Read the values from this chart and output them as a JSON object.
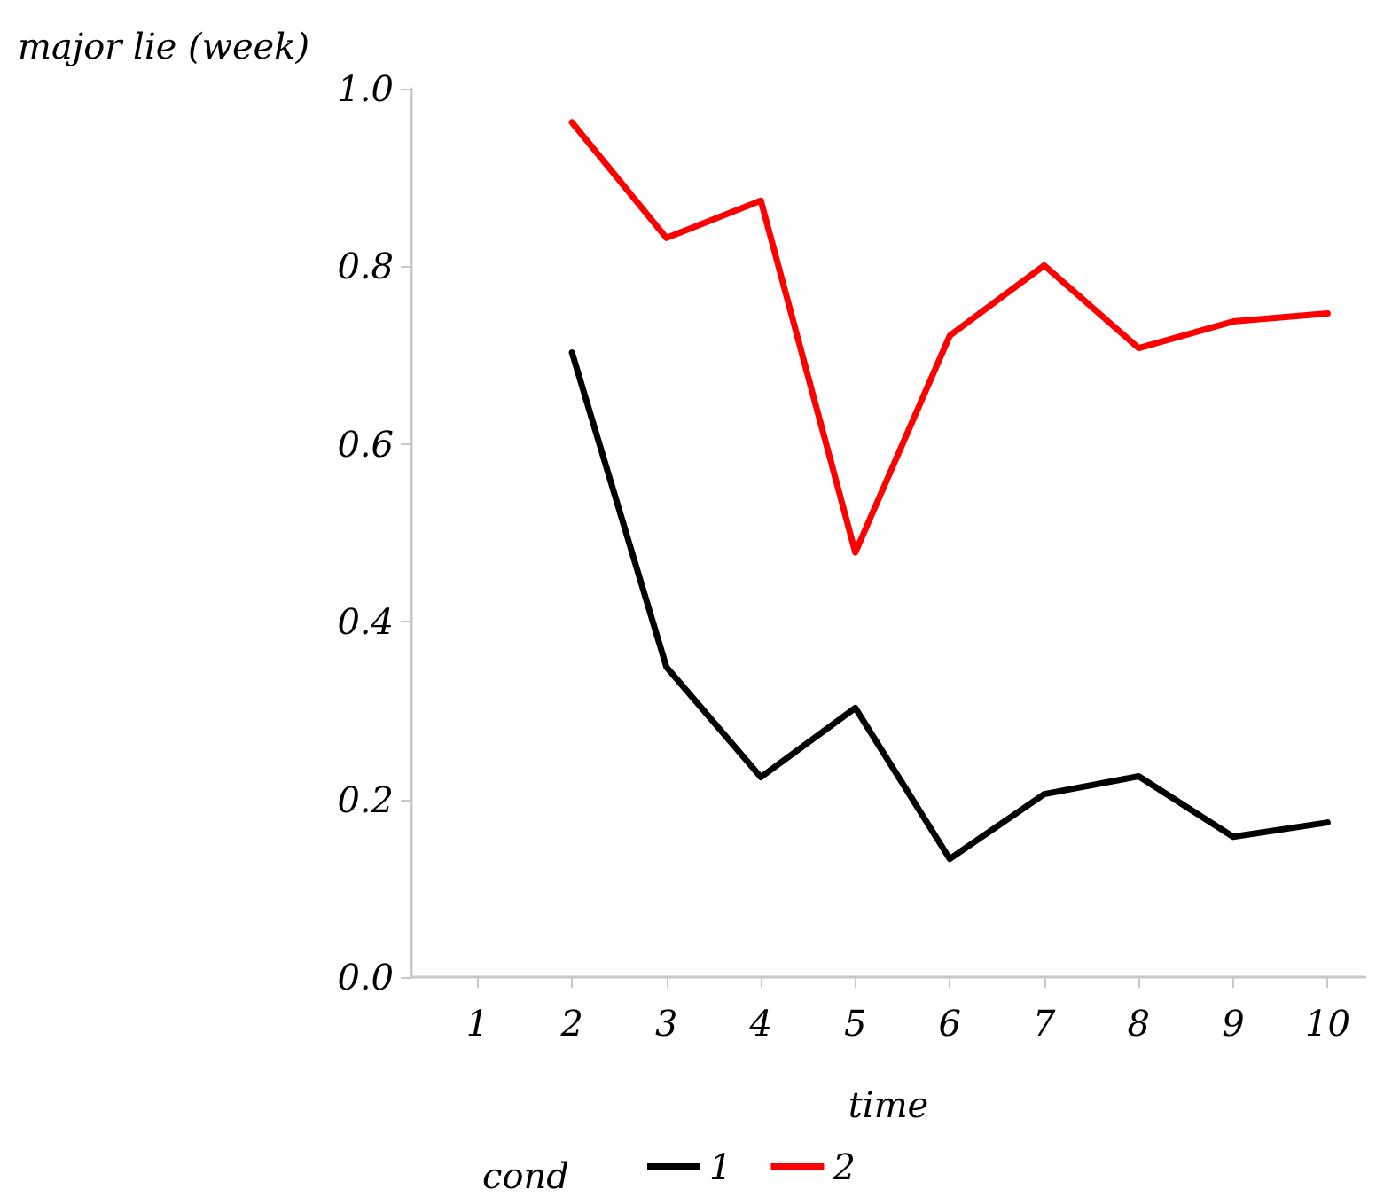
{
  "chart_data": {
    "type": "line",
    "ylabel": "major lie (week)",
    "xlabel": "time",
    "legend_title": "cond",
    "legend": "bottom",
    "grid": false,
    "marker": "none",
    "line_style": "solid",
    "xlim": [
      0.3,
      10.4
    ],
    "xticks": [
      1,
      2,
      3,
      4,
      5,
      6,
      7,
      8,
      9,
      10
    ],
    "ylim": [
      0,
      1
    ],
    "yticks": [
      {
        "value": 0,
        "label": "0.0"
      },
      {
        "value": 0.2,
        "label": "0.2"
      },
      {
        "value": 0.4,
        "label": "0.4"
      },
      {
        "value": 0.6,
        "label": "0.6"
      },
      {
        "value": 0.8,
        "label": "0.8"
      },
      {
        "value": 1,
        "label": "1.0"
      }
    ],
    "x": [
      2,
      3,
      4,
      5,
      6,
      7,
      8,
      9,
      10
    ],
    "series": [
      {
        "name": "1",
        "color": "#000000",
        "values": [
          0.703,
          0.349,
          0.225,
          0.303,
          0.133,
          0.206,
          0.226,
          0.158,
          0.174
        ]
      },
      {
        "name": "2",
        "color": "#ff0000",
        "values": [
          0.962,
          0.832,
          0.874,
          0.478,
          0.722,
          0.801,
          0.708,
          0.738,
          0.747
        ]
      }
    ]
  }
}
